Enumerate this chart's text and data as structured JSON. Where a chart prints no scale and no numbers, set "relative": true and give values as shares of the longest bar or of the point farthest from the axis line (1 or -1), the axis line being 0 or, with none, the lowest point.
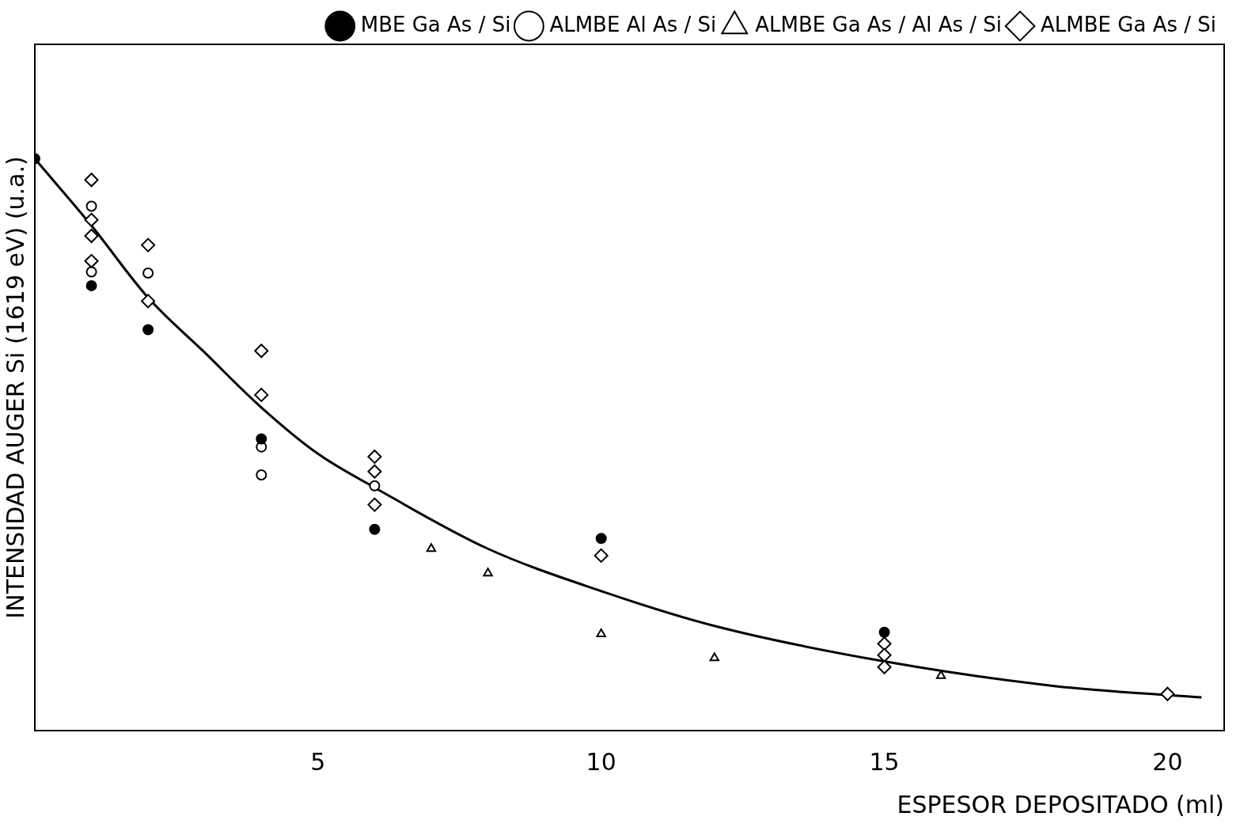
{
  "chart_data": {
    "type": "scatter",
    "relative": true,
    "xlabel": "ESPESOR DEPOSITADO (ml)",
    "ylabel": "INTENSIDAD AUGER Si (1619 eV) (u.a.)",
    "xlim": [
      0,
      21
    ],
    "xticks": [
      5,
      10,
      15,
      20
    ],
    "grid": false,
    "legend": "top right",
    "series": [
      {
        "name": "MBE Ga As / Si",
        "color": "#000000",
        "marker": "circle",
        "x": [
          0,
          1,
          2,
          4,
          6,
          10,
          15
        ],
        "values": [
          1.0,
          0.778,
          0.701,
          0.51,
          0.352,
          0.336,
          0.172
        ]
      },
      {
        "name": "ALMBE Al As / Si",
        "color": "#000000",
        "marker": "circle",
        "x": [
          1,
          1,
          2,
          4,
          4,
          6
        ],
        "values": [
          0.917,
          0.802,
          0.8,
          0.496,
          0.447,
          0.428
        ]
      },
      {
        "name": "ALMBE Ga As / Al As / Si",
        "color": "#000000",
        "marker": "triangle",
        "x": [
          7,
          8,
          10,
          12,
          16
        ],
        "values": [
          0.318,
          0.275,
          0.169,
          0.127,
          0.096
        ]
      },
      {
        "name": "ALMBE Ga As / Si",
        "color": "#000000",
        "marker": "diamond",
        "x": [
          1,
          1,
          1,
          1,
          2,
          2,
          4,
          4,
          6,
          6,
          6,
          10,
          15,
          15,
          15,
          20
        ],
        "values": [
          0.963,
          0.893,
          0.865,
          0.821,
          0.849,
          0.751,
          0.664,
          0.587,
          0.479,
          0.453,
          0.395,
          0.306,
          0.152,
          0.132,
          0.111,
          0.064
        ]
      },
      {
        "type": "line",
        "color": "#000000",
        "marker": "none",
        "line_style": "solid",
        "x": [
          0,
          1,
          2,
          3,
          4,
          5,
          6,
          8,
          10,
          12,
          15,
          18,
          20.6
        ],
        "values": [
          1.0,
          0.883,
          0.757,
          0.661,
          0.565,
          0.484,
          0.425,
          0.318,
          0.244,
          0.183,
          0.121,
          0.078,
          0.058
        ]
      }
    ]
  }
}
